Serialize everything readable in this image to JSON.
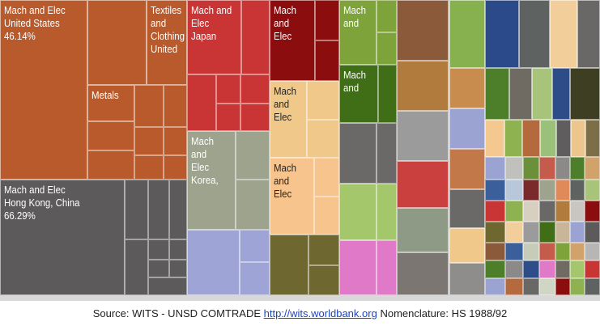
{
  "chart_data": {
    "type": "treemap",
    "title": "",
    "tiles": [
      {
        "name": "mach-elec-us",
        "label": "Mach and Elec\nUnited States\n46.14%",
        "color": "#b85a2c"
      },
      {
        "name": "textiles-us",
        "label": "Textiles\nand\nClothing\nUnited",
        "color": "#b85a2c"
      },
      {
        "name": "metals",
        "label": "Metals",
        "color": "#b85a2c"
      },
      {
        "name": "mach-elec-hk",
        "label": "Mach and Elec\nHong Kong, China\n66.29%",
        "color": "#5c5a5a"
      },
      {
        "name": "mach-elec-japan",
        "label": "Mach and\nElec\nJapan",
        "color": "#c93535"
      },
      {
        "name": "mach-elec-korea",
        "label": "Mach and\nElec\nKorea,",
        "color": "#9da38c"
      },
      {
        "name": "mach-elec-darkred",
        "label": "Mach\nand Elec",
        "color": "#8b0d0d"
      },
      {
        "name": "mach-elec-tan",
        "label": "Mach\nand\nElec",
        "color": "#f0c98a"
      },
      {
        "name": "mach-elec-peach",
        "label": "Mach\nand Elec",
        "color": "#f7c48e"
      },
      {
        "name": "mach-elec-green",
        "label": "Mach\nand",
        "color": "#7ea33a"
      },
      {
        "name": "mach-elec-darkgreen",
        "label": "Mach\nand",
        "color": "#3f6e16"
      }
    ]
  },
  "footer": {
    "source_text": "Source: WITS - UNSD COMTRADE",
    "link_text": "http://wits.worldbank.org",
    "nomenclature_text": "Nomenclature: HS 1988/92"
  }
}
